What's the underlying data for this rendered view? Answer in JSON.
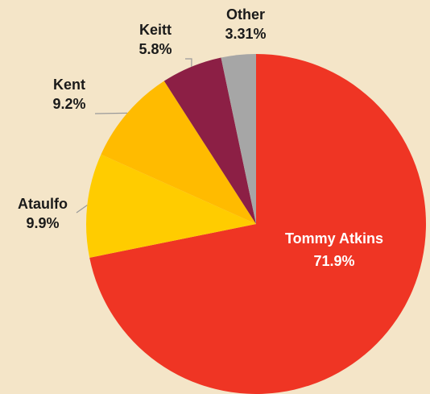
{
  "chart_data": {
    "type": "pie",
    "title": "",
    "start_angle_deg": 0,
    "direction": "clockwise",
    "slices": [
      {
        "name": "Tommy Atkins",
        "value": 71.9,
        "label": "71.9%",
        "color": "#ef3524"
      },
      {
        "name": "Ataulfo",
        "value": 9.9,
        "label": "9.9%",
        "color": "#ffcc00"
      },
      {
        "name": "Kent",
        "value": 9.2,
        "label": "9.2%",
        "color": "#ffbb00"
      },
      {
        "name": "Keitt",
        "value": 5.8,
        "label": "5.8%",
        "color": "#8c1f45"
      },
      {
        "name": "Other",
        "value": 3.31,
        "label": "3.31%",
        "color": "#a6a6a6"
      }
    ]
  },
  "background_color": "#f4e5c8"
}
